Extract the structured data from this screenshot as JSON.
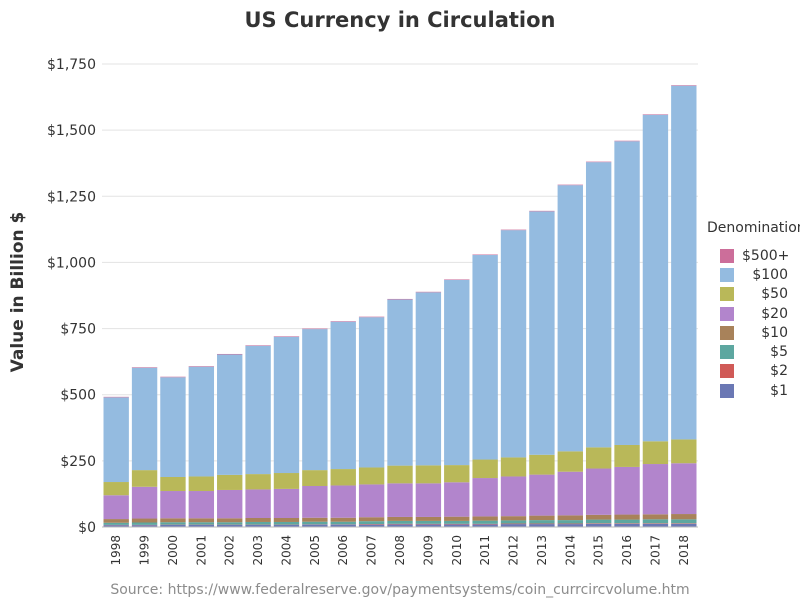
{
  "chart_data": {
    "type": "bar",
    "stacked": true,
    "title": "US Currency in Circulation",
    "xlabel": "",
    "ylabel": "Value in Billion $",
    "source": "Source: https://www.federalreserve.gov/paymentsystems/coin_currcircvolume.htm",
    "ylim": [
      0,
      1750
    ],
    "yticks": [
      0,
      250,
      500,
      750,
      1000,
      1250,
      1500,
      1750
    ],
    "ytick_labels": [
      "$0",
      "$250",
      "$500",
      "$750",
      "$1,000",
      "$1,250",
      "$1,500",
      "$1,750"
    ],
    "grid": true,
    "legend": {
      "title": "Denomination",
      "placement": "right"
    },
    "categories": [
      "1998",
      "1999",
      "2000",
      "2001",
      "2002",
      "2003",
      "2004",
      "2005",
      "2006",
      "2007",
      "2008",
      "2009",
      "2010",
      "2011",
      "2012",
      "2013",
      "2014",
      "2015",
      "2016",
      "2017",
      "2018"
    ],
    "series": [
      {
        "name": "$1",
        "color": "#6b78b4",
        "values": [
          7,
          7,
          8,
          8,
          8,
          8,
          8,
          9,
          9,
          9,
          10,
          10,
          10,
          10,
          11,
          11,
          11,
          12,
          12,
          12,
          12
        ]
      },
      {
        "name": "$2",
        "color": "#d05a57",
        "values": [
          1,
          1,
          1,
          1,
          1,
          1,
          1,
          1,
          1,
          2,
          2,
          2,
          2,
          2,
          2,
          2,
          2,
          2,
          2,
          2,
          2
        ]
      },
      {
        "name": "$5",
        "color": "#5da7a0",
        "values": [
          8,
          9,
          9,
          9,
          9,
          10,
          10,
          10,
          10,
          11,
          11,
          11,
          11,
          12,
          12,
          13,
          13,
          14,
          14,
          15,
          15
        ]
      },
      {
        "name": "$10",
        "color": "#a8825a",
        "values": [
          14,
          15,
          15,
          15,
          15,
          15,
          15,
          15,
          15,
          15,
          15,
          15,
          16,
          16,
          16,
          17,
          18,
          18,
          19,
          19,
          20
        ]
      },
      {
        "name": "$20",
        "color": "#b285cc",
        "values": [
          90,
          120,
          103,
          103,
          107,
          108,
          110,
          120,
          122,
          124,
          127,
          127,
          130,
          145,
          150,
          155,
          165,
          175,
          180,
          190,
          192
        ]
      },
      {
        "name": "$50",
        "color": "#b9b859",
        "values": [
          50,
          63,
          53,
          55,
          57,
          58,
          60,
          60,
          62,
          64,
          67,
          68,
          65,
          70,
          72,
          75,
          77,
          80,
          83,
          86,
          90
        ]
      },
      {
        "name": "$100",
        "color": "#94bbe0",
        "values": [
          320,
          387,
          377,
          415,
          455,
          485,
          515,
          533,
          557,
          568,
          628,
          654,
          700,
          773,
          859,
          920,
          1006,
          1078,
          1148,
          1234,
          1337
        ]
      },
      {
        "name": "$500+",
        "color": "#cc6e9a",
        "values": [
          2,
          2,
          2,
          2,
          2,
          2,
          2,
          2,
          2,
          2,
          2,
          2,
          2,
          2,
          2,
          2,
          2,
          2,
          2,
          2,
          2
        ]
      }
    ]
  }
}
